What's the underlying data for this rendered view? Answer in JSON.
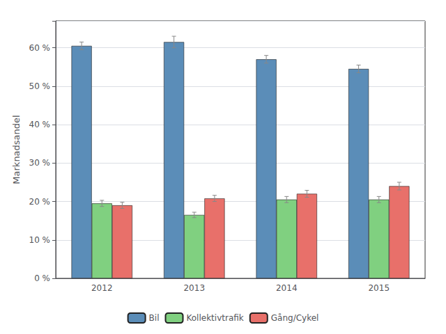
{
  "chart_data": {
    "type": "bar",
    "categories": [
      "2012",
      "2013",
      "2014",
      "2015"
    ],
    "series": [
      {
        "name": "Bil",
        "color": "#5B8DB8",
        "values": [
          60.5,
          61.5,
          57.0,
          54.5
        ],
        "errors": [
          1.0,
          1.5,
          1.0,
          1.0
        ]
      },
      {
        "name": "Kollektivtrafik",
        "color": "#80D080",
        "values": [
          19.5,
          16.5,
          20.5,
          20.5
        ],
        "errors": [
          0.8,
          0.7,
          0.8,
          0.8
        ]
      },
      {
        "name": "Gång/Cykel",
        "color": "#E8706A",
        "values": [
          19.0,
          20.8,
          22.0,
          24.0
        ],
        "errors": [
          0.8,
          0.8,
          0.9,
          1.0
        ]
      }
    ],
    "ylabel": "Marknadsandel",
    "ylim": [
      0,
      67
    ],
    "yticks": [
      {
        "value": 0,
        "label": "0 %"
      },
      {
        "value": 10,
        "label": "10 %"
      },
      {
        "value": 20,
        "label": "20 %"
      },
      {
        "value": 30,
        "label": "30 %"
      },
      {
        "value": 40,
        "label": "40 %"
      },
      {
        "value": 50,
        "label": "50 %"
      },
      {
        "value": 60,
        "label": "60 %"
      }
    ],
    "grid": true,
    "legend": "bottom"
  }
}
